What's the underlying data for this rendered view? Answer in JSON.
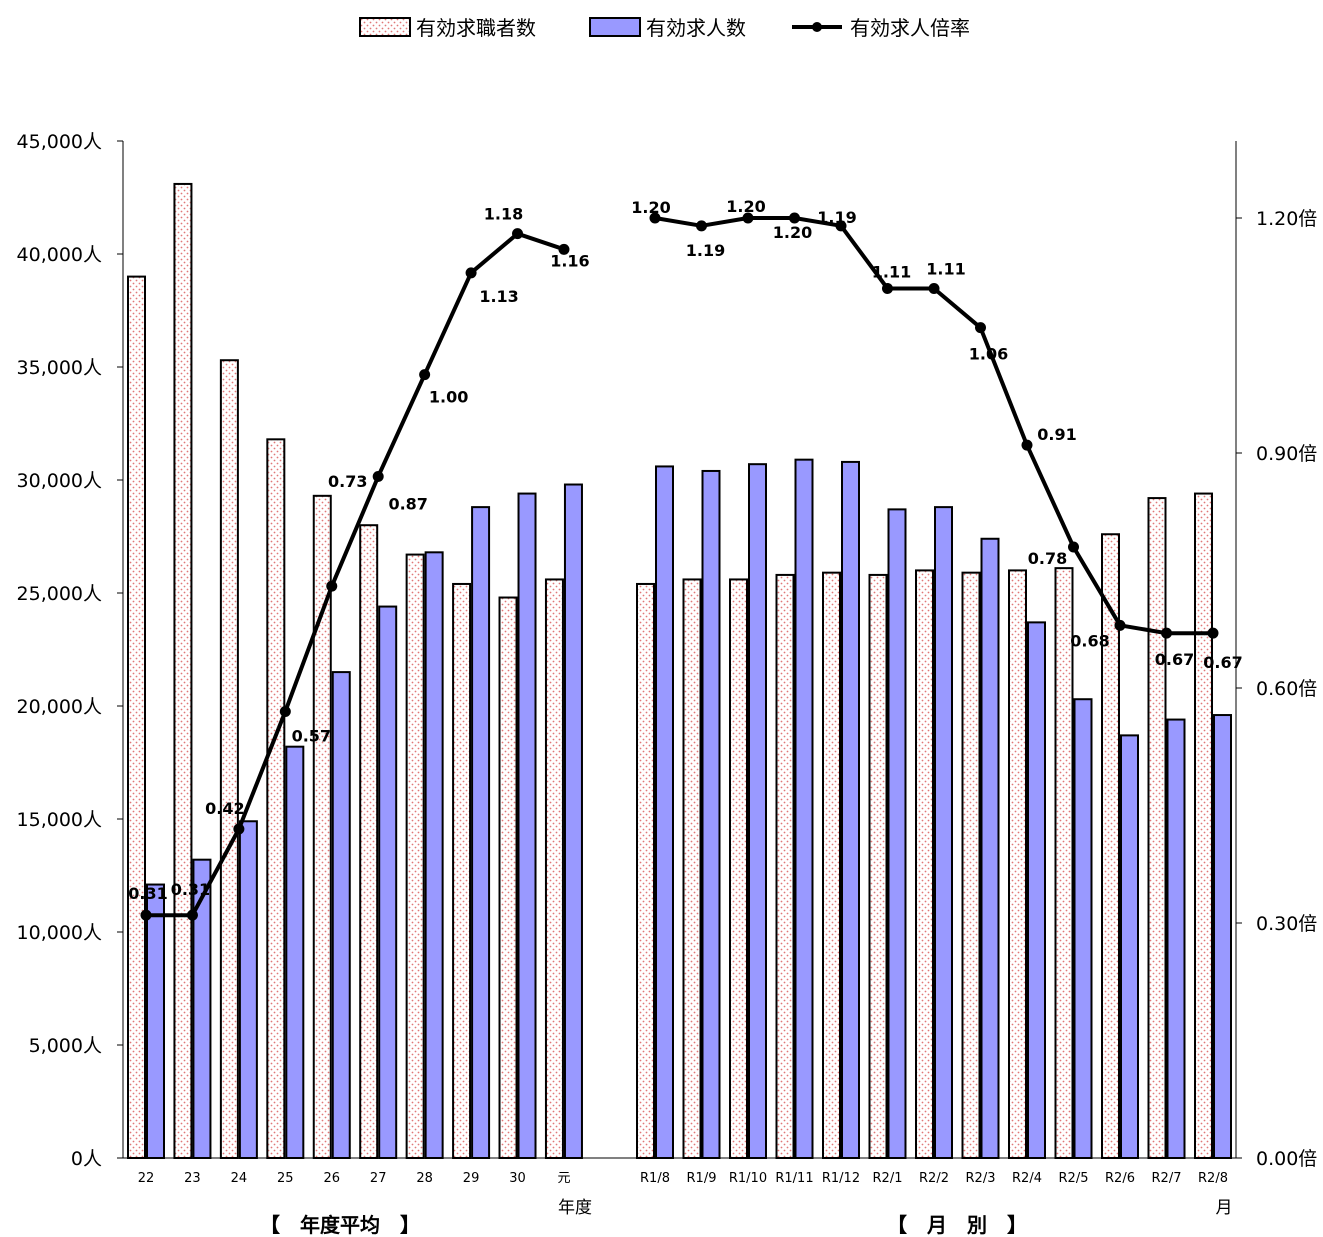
{
  "chart_data": {
    "type": "bar",
    "legend": {
      "placement": "top-center",
      "items": [
        "有効求職者数",
        "有効求人数",
        "有効求人倍率"
      ]
    },
    "categories": [
      "22",
      "23",
      "24",
      "25",
      "26",
      "27",
      "28",
      "29",
      "30",
      "元",
      "R1/8",
      "R1/9",
      "R1/10",
      "R1/11",
      "R1/12",
      "R2/1",
      "R2/2",
      "R2/3",
      "R2/4",
      "R2/5",
      "R2/6",
      "R2/7",
      "R2/8"
    ],
    "series": [
      {
        "name": "有効求職者数",
        "axis": "left",
        "style": "dotted-pink",
        "values": [
          39000,
          43100,
          35300,
          31800,
          29300,
          28000,
          26700,
          25400,
          24800,
          25600,
          25400,
          25600,
          25600,
          25800,
          25900,
          25800,
          26000,
          25900,
          26000,
          26100,
          27600,
          29200,
          29400
        ]
      },
      {
        "name": "有効求人数",
        "axis": "left",
        "color": "#9999ff",
        "values": [
          12100,
          13200,
          14900,
          18200,
          21500,
          24400,
          26800,
          28800,
          29400,
          29800,
          30600,
          30400,
          30700,
          30900,
          30800,
          28700,
          28800,
          27400,
          23700,
          20300,
          18700,
          19400,
          19600
        ]
      },
      {
        "name": "有効求人倍率",
        "axis": "right",
        "type": "line",
        "color": "#000000",
        "values": [
          0.31,
          0.31,
          0.42,
          0.57,
          0.73,
          0.87,
          1.0,
          1.13,
          1.18,
          1.16,
          1.2,
          1.19,
          1.2,
          1.2,
          1.19,
          1.11,
          1.11,
          1.06,
          0.91,
          0.78,
          0.68,
          0.67,
          0.67
        ],
        "labels": [
          "0.31",
          "0.31",
          "0.42",
          "0.57",
          "0.73",
          "0.87",
          "1.00",
          "1.13",
          "1.18",
          "1.16",
          "1.20",
          "1.19",
          "1.20",
          "1.20",
          "1.19",
          "1.11",
          "1.11",
          "1.06",
          "0.91",
          "0.78",
          "0.68",
          "0.67",
          "0.67"
        ]
      }
    ],
    "y_left": {
      "ylim": [
        0,
        45000
      ],
      "ticks": [
        "0人",
        "5,000人",
        "10,000人",
        "15,000人",
        "20,000人",
        "25,000人",
        "30,000人",
        "35,000人",
        "40,000人",
        "45,000人"
      ]
    },
    "y_right": {
      "ylim": [
        0,
        1.3
      ],
      "ticks": [
        "0.00倍",
        "0.30倍",
        "0.60倍",
        "0.90倍",
        "1.20倍"
      ]
    },
    "x_units": [
      "年度",
      "月"
    ],
    "group_labels": [
      "【　年度平均　】",
      "【　月　別　】"
    ],
    "grid": false
  }
}
